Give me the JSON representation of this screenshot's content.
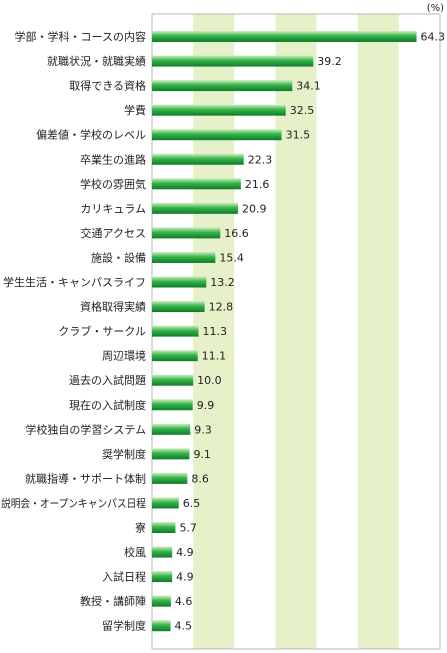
{
  "chart_data": {
    "type": "bar",
    "orientation": "horizontal",
    "unit": "(%)",
    "categories": [
      "学部・学科・コースの内容",
      "就職状況・就職実績",
      "取得できる資格",
      "学費",
      "偏差値・学校のレベル",
      "卒業生の進路",
      "学校の雰囲気",
      "カリキュラム",
      "交通アクセス",
      "施設・設備",
      "学生生活・キャンパスライフ",
      "資格取得実績",
      "クラブ・サークル",
      "周辺環境",
      "過去の入試問題",
      "現在の入試制度",
      "学校独自の学習システム",
      "奨学制度",
      "就職指導・サポート体制",
      "説明会・オープンキャンパス日程",
      "寮",
      "校風",
      "入試日程",
      "教授・講師陣",
      "留学制度"
    ],
    "values": [
      64.3,
      39.2,
      34.1,
      32.5,
      31.5,
      22.3,
      21.6,
      20.9,
      16.6,
      15.4,
      13.2,
      12.8,
      11.3,
      11.1,
      10.0,
      9.9,
      9.3,
      9.1,
      8.6,
      6.5,
      5.7,
      4.9,
      4.9,
      4.6,
      4.5
    ],
    "value_labels": [
      "64.3",
      "39.2",
      "34.1",
      "32.5",
      "31.5",
      "22.3",
      "21.6",
      "20.9",
      "16.6",
      "15.4",
      "13.2",
      "12.8",
      "11.3",
      "11.1",
      "10.0",
      "9.9",
      "9.3",
      "9.1",
      "8.6",
      "6.5",
      "5.7",
      "4.9",
      "4.9",
      "4.6",
      "4.5"
    ],
    "xlim": [
      0,
      70
    ],
    "band_step": 10,
    "grid": "alternating vertical bands every 10",
    "colors": {
      "bar_light": "#cfeec0",
      "bar_mid": "#35b54a",
      "bar_dark": "#0f7a2a",
      "band": "#e7f1c9",
      "frame": "#b7b7b7"
    }
  }
}
